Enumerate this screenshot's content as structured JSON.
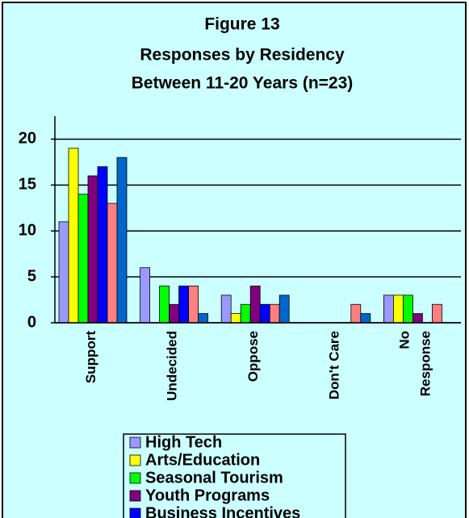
{
  "chart_data": {
    "type": "bar",
    "title": [
      "Figure 13",
      "Responses by Residency",
      "Between 11-20 Years (n=23)"
    ],
    "categories": [
      "Support",
      "Undecided",
      "Oppose",
      "Don't Care",
      "No Response"
    ],
    "series": [
      {
        "name": "High Tech",
        "color": "#9999ff",
        "values": [
          11,
          6,
          3,
          0,
          3
        ]
      },
      {
        "name": "Arts/Education",
        "color": "#ffff00",
        "values": [
          19,
          0,
          1,
          0,
          3
        ]
      },
      {
        "name": "Seasonal Tourism",
        "color": "#00ff00",
        "values": [
          14,
          4,
          2,
          0,
          3
        ]
      },
      {
        "name": "Youth Programs",
        "color": "#800080",
        "values": [
          16,
          2,
          4,
          0,
          1
        ]
      },
      {
        "name": "Business Incentives",
        "color": "#0000ff",
        "values": [
          17,
          4,
          2,
          0,
          0
        ]
      },
      {
        "color": "#ff8080",
        "values": [
          13,
          4,
          2,
          2,
          2
        ]
      },
      {
        "color": "#0066cc",
        "values": [
          18,
          1,
          3,
          1,
          0
        ]
      }
    ],
    "ylim": [
      0,
      22.5
    ],
    "yticks": [
      0,
      5,
      10,
      15,
      20
    ],
    "grid": true,
    "legend": "bottom"
  }
}
